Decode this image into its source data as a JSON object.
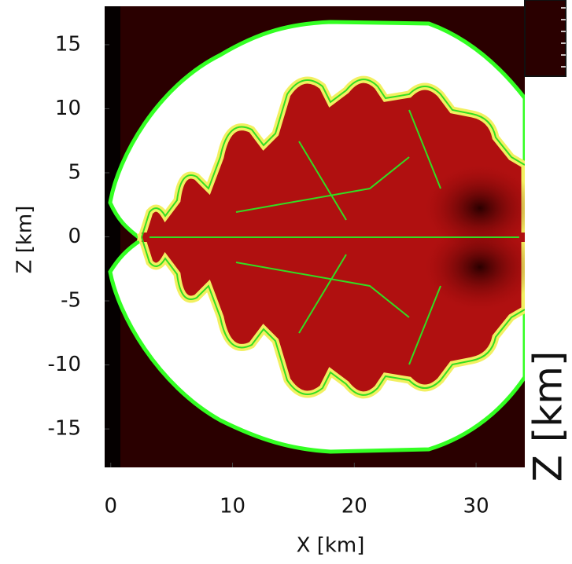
{
  "chart_data": {
    "type": "heatmap",
    "xlabel": "X [km]",
    "ylabel": "Z [km]",
    "side_label": "Z [km]",
    "xlim": [
      -0.5,
      34
    ],
    "ylim": [
      -18,
      18
    ],
    "xticks": [
      0,
      10,
      20,
      30
    ],
    "yticks": [
      -15,
      -10,
      -5,
      0,
      5,
      10,
      15
    ]
  }
}
